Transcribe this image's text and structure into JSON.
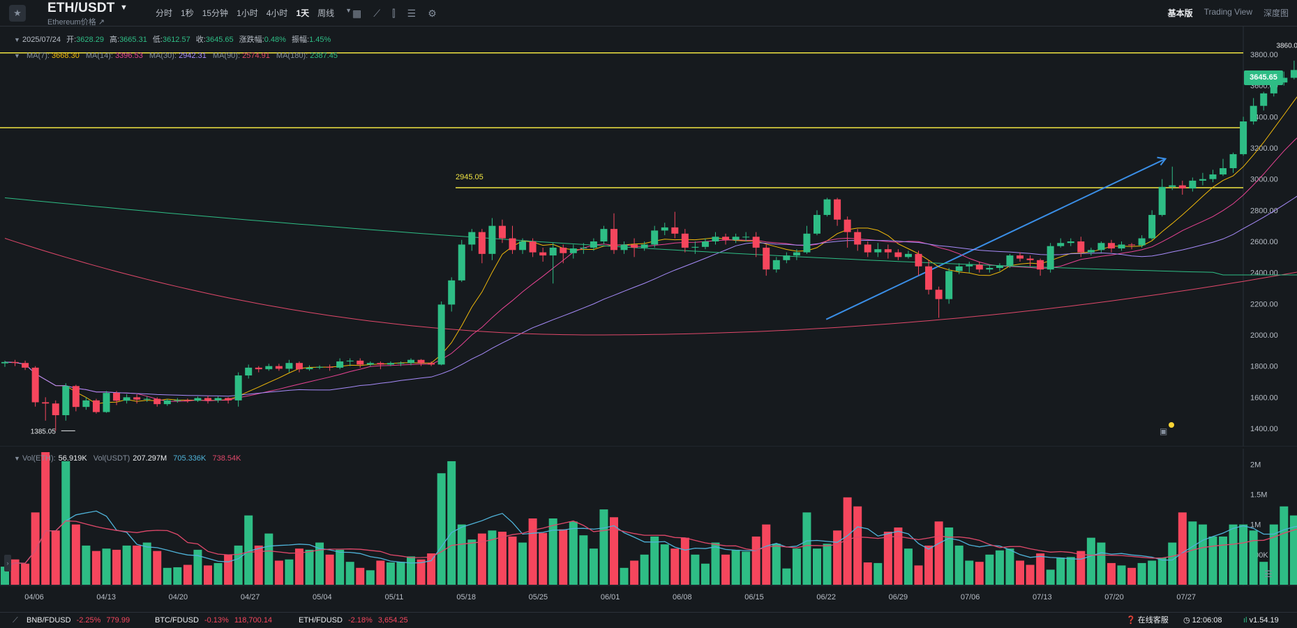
{
  "header": {
    "symbol": "ETH/USDT",
    "subtitle": "Ethereum价格 ↗",
    "intervals": [
      "分时",
      "1秒",
      "15分钟",
      "1小时",
      "4小时",
      "1天",
      "周线"
    ],
    "active_interval": "1天",
    "views": [
      "基本版",
      "Trading View",
      "深度图"
    ],
    "active_view": "基本版"
  },
  "ohlc": {
    "date": "2025/07/24",
    "open_label": "开:",
    "open": "3628.29",
    "high_label": "高:",
    "high": "3665.31",
    "low_label": "低:",
    "low": "3612.57",
    "close_label": "收:",
    "close": "3645.65",
    "change_label": "涨跌幅:",
    "change": "0.48%",
    "amplitude_label": "振幅:",
    "amplitude": "1.45%"
  },
  "ma": [
    {
      "label": "MA(7):",
      "value": "3668.30",
      "color": "#f0b90b"
    },
    {
      "label": "MA(14):",
      "value": "3396.53",
      "color": "#e84393"
    },
    {
      "label": "MA(30):",
      "value": "2942.31",
      "color": "#a78bfa"
    },
    {
      "label": "MA(90):",
      "value": "2574.91",
      "color": "#e0486a"
    },
    {
      "label": "MA(180):",
      "value": "2387.45",
      "color": "#2ebd85"
    }
  ],
  "volume": {
    "label_eth": "Vol(ETH):",
    "eth": "56.919K",
    "label_usdt": "Vol(USDT)",
    "usdt": "207.297M",
    "ma1": "705.336K",
    "ma2": "738.54K"
  },
  "price_badge": "3645.65",
  "annotations": {
    "high_marker": "3860.00",
    "low_marker": "1385.05",
    "line_label": "2945.05"
  },
  "colors": {
    "up": "#2ebd85",
    "down": "#f6465d",
    "bg": "#161a1e",
    "hline": "#f0e442",
    "trend": "#3a8ee6"
  },
  "bottom": {
    "tickers": [
      {
        "name": "BNB/FDUSD",
        "change": "-2.25%",
        "price": "779.99"
      },
      {
        "name": "BTC/FDUSD",
        "change": "-0.13%",
        "price": "118,700.14"
      },
      {
        "name": "ETH/FDUSD",
        "change": "-2.18%",
        "price": "3,654.25"
      }
    ],
    "support": "在线客服",
    "time": "12:06:08",
    "version": "v1.54.19"
  },
  "chart_data": {
    "type": "candlestick",
    "y_ticks": [
      1400,
      1600,
      1800,
      2000,
      2200,
      2400,
      2600,
      2800,
      3000,
      3200,
      3400,
      3600,
      3800
    ],
    "x_ticks": [
      "04/06",
      "04/13",
      "04/20",
      "04/27",
      "05/04",
      "05/11",
      "05/18",
      "05/25",
      "06/01",
      "06/08",
      "06/15",
      "06/22",
      "06/29",
      "07/06",
      "07/13",
      "07/20",
      "07/27"
    ],
    "vol_ticks": [
      "500K",
      "1M",
      "1.5M",
      "2M"
    ],
    "vol_tick_values": [
      500000,
      1000000,
      1500000,
      2000000
    ],
    "horizontal_lines": [
      3810,
      3330,
      2945.05
    ],
    "trendline": {
      "from": [
        "06/22",
        2100
      ],
      "to": [
        "07/25",
        3130
      ]
    },
    "candles": [
      [
        1818,
        1826,
        1795,
        1835
      ],
      [
        1826,
        1820,
        1800,
        1840
      ],
      [
        1820,
        1790,
        1775,
        1835
      ],
      [
        1790,
        1568,
        1540,
        1800
      ],
      [
        1568,
        1560,
        1450,
        1600
      ],
      [
        1560,
        1485,
        1385,
        1580
      ],
      [
        1485,
        1672,
        1450,
        1690
      ],
      [
        1672,
        1538,
        1510,
        1680
      ],
      [
        1538,
        1580,
        1520,
        1600
      ],
      [
        1580,
        1505,
        1495,
        1590
      ],
      [
        1505,
        1628,
        1500,
        1640
      ],
      [
        1628,
        1578,
        1550,
        1640
      ],
      [
        1578,
        1600,
        1560,
        1620
      ],
      [
        1600,
        1585,
        1560,
        1620
      ],
      [
        1585,
        1590,
        1570,
        1605
      ],
      [
        1590,
        1556,
        1540,
        1600
      ],
      [
        1556,
        1580,
        1545,
        1590
      ],
      [
        1580,
        1582,
        1565,
        1595
      ],
      [
        1582,
        1578,
        1565,
        1592
      ],
      [
        1578,
        1595,
        1570,
        1605
      ],
      [
        1595,
        1580,
        1560,
        1610
      ],
      [
        1580,
        1595,
        1565,
        1605
      ],
      [
        1595,
        1580,
        1560,
        1600
      ],
      [
        1580,
        1740,
        1540,
        1760
      ],
      [
        1740,
        1790,
        1720,
        1810
      ],
      [
        1790,
        1780,
        1760,
        1800
      ],
      [
        1780,
        1800,
        1770,
        1815
      ],
      [
        1800,
        1783,
        1770,
        1815
      ],
      [
        1783,
        1820,
        1760,
        1840
      ],
      [
        1820,
        1780,
        1760,
        1830
      ],
      [
        1780,
        1790,
        1770,
        1805
      ],
      [
        1790,
        1795,
        1780,
        1805
      ],
      [
        1795,
        1790,
        1770,
        1810
      ],
      [
        1790,
        1830,
        1780,
        1850
      ],
      [
        1830,
        1835,
        1800,
        1850
      ],
      [
        1835,
        1810,
        1790,
        1850
      ],
      [
        1810,
        1820,
        1800,
        1830
      ],
      [
        1820,
        1810,
        1780,
        1830
      ],
      [
        1810,
        1820,
        1800,
        1830
      ],
      [
        1820,
        1820,
        1800,
        1830
      ],
      [
        1820,
        1840,
        1805,
        1850
      ],
      [
        1840,
        1820,
        1800,
        1845
      ],
      [
        1820,
        1810,
        1800,
        1830
      ],
      [
        1810,
        2195,
        1805,
        2215
      ],
      [
        2195,
        2350,
        2150,
        2370
      ],
      [
        2350,
        2580,
        2340,
        2610
      ],
      [
        2580,
        2660,
        2540,
        2680
      ],
      [
        2660,
        2520,
        2460,
        2680
      ],
      [
        2520,
        2700,
        2480,
        2750
      ],
      [
        2700,
        2620,
        2590,
        2740
      ],
      [
        2620,
        2545,
        2520,
        2700
      ],
      [
        2545,
        2600,
        2520,
        2620
      ],
      [
        2600,
        2530,
        2500,
        2620
      ],
      [
        2530,
        2510,
        2470,
        2560
      ],
      [
        2510,
        2560,
        2330,
        2590
      ],
      [
        2560,
        2525,
        2460,
        2580
      ],
      [
        2525,
        2555,
        2490,
        2580
      ],
      [
        2555,
        2560,
        2520,
        2590
      ],
      [
        2560,
        2600,
        2540,
        2620
      ],
      [
        2600,
        2680,
        2580,
        2700
      ],
      [
        2680,
        2545,
        2520,
        2780
      ],
      [
        2545,
        2580,
        2520,
        2600
      ],
      [
        2580,
        2560,
        2500,
        2620
      ],
      [
        2560,
        2580,
        2540,
        2600
      ],
      [
        2580,
        2670,
        2560,
        2700
      ],
      [
        2670,
        2690,
        2640,
        2720
      ],
      [
        2690,
        2650,
        2620,
        2790
      ],
      [
        2650,
        2560,
        2530,
        2680
      ],
      [
        2560,
        2565,
        2520,
        2600
      ],
      [
        2565,
        2600,
        2550,
        2620
      ],
      [
        2600,
        2630,
        2580,
        2660
      ],
      [
        2630,
        2610,
        2580,
        2650
      ],
      [
        2610,
        2630,
        2590,
        2650
      ],
      [
        2630,
        2630,
        2600,
        2660
      ],
      [
        2630,
        2560,
        2500,
        2660
      ],
      [
        2560,
        2420,
        2380,
        2580
      ],
      [
        2420,
        2480,
        2400,
        2500
      ],
      [
        2480,
        2510,
        2460,
        2530
      ],
      [
        2510,
        2530,
        2480,
        2550
      ],
      [
        2530,
        2650,
        2520,
        2700
      ],
      [
        2650,
        2770,
        2640,
        2800
      ],
      [
        2770,
        2870,
        2760,
        2880
      ],
      [
        2870,
        2740,
        2700,
        2880
      ],
      [
        2740,
        2660,
        2560,
        2760
      ],
      [
        2660,
        2580,
        2540,
        2680
      ],
      [
        2580,
        2530,
        2500,
        2600
      ],
      [
        2530,
        2550,
        2500,
        2590
      ],
      [
        2550,
        2530,
        2490,
        2580
      ],
      [
        2530,
        2500,
        2480,
        2550
      ],
      [
        2500,
        2520,
        2490,
        2540
      ],
      [
        2520,
        2440,
        2380,
        2540
      ],
      [
        2440,
        2290,
        2260,
        2480
      ],
      [
        2290,
        2230,
        2110,
        2310
      ],
      [
        2230,
        2410,
        2200,
        2430
      ],
      [
        2410,
        2440,
        2390,
        2460
      ],
      [
        2440,
        2450,
        2400,
        2470
      ],
      [
        2450,
        2420,
        2400,
        2470
      ],
      [
        2420,
        2430,
        2400,
        2450
      ],
      [
        2430,
        2445,
        2410,
        2460
      ],
      [
        2445,
        2510,
        2430,
        2520
      ],
      [
        2510,
        2490,
        2470,
        2530
      ],
      [
        2490,
        2480,
        2440,
        2510
      ],
      [
        2480,
        2420,
        2380,
        2490
      ],
      [
        2420,
        2570,
        2400,
        2590
      ],
      [
        2570,
        2590,
        2560,
        2620
      ],
      [
        2590,
        2600,
        2570,
        2620
      ],
      [
        2600,
        2530,
        2500,
        2630
      ],
      [
        2530,
        2545,
        2510,
        2560
      ],
      [
        2545,
        2590,
        2530,
        2600
      ],
      [
        2590,
        2555,
        2530,
        2610
      ],
      [
        2555,
        2580,
        2540,
        2600
      ],
      [
        2580,
        2575,
        2550,
        2590
      ],
      [
        2575,
        2620,
        2560,
        2640
      ],
      [
        2620,
        2770,
        2610,
        2800
      ],
      [
        2770,
        2950,
        2760,
        3000
      ],
      [
        2950,
        2960,
        2930,
        3080
      ],
      [
        2960,
        2940,
        2900,
        2990
      ],
      [
        2940,
        2990,
        2920,
        3010
      ],
      [
        2990,
        3000,
        2960,
        3040
      ],
      [
        3000,
        3030,
        2980,
        3060
      ],
      [
        3030,
        3070,
        3020,
        3130
      ],
      [
        3070,
        3160,
        3040,
        3170
      ],
      [
        3160,
        3370,
        3150,
        3400
      ],
      [
        3370,
        3470,
        3350,
        3520
      ],
      [
        3470,
        3550,
        3440,
        3560
      ],
      [
        3550,
        3620,
        3530,
        3640
      ],
      [
        3620,
        3650,
        3600,
        3690
      ],
      [
        3650,
        3700,
        3640,
        3760
      ],
      [
        3700,
        3760,
        3650,
        3860
      ],
      [
        3760,
        3750,
        3720,
        3820
      ],
      [
        3750,
        3740,
        3660,
        3780
      ],
      [
        3740,
        3620,
        3530,
        3760
      ],
      [
        3628,
        3645,
        3612,
        3665
      ]
    ],
    "volumes": [
      300000,
      420000,
      350000,
      1200000,
      2200000,
      900000,
      2050000,
      1000000,
      650000,
      560000,
      600000,
      580000,
      650000,
      650000,
      700000,
      560000,
      280000,
      290000,
      330000,
      580000,
      320000,
      360000,
      500000,
      650000,
      1150000,
      650000,
      850000,
      400000,
      420000,
      600000,
      580000,
      700000,
      500000,
      580000,
      380000,
      280000,
      240000,
      400000,
      370000,
      380000,
      470000,
      420000,
      520000,
      1850000,
      2050000,
      1000000,
      750000,
      850000,
      900000,
      880000,
      800000,
      700000,
      1100000,
      860000,
      1100000,
      920000,
      1050000,
      820000,
      600000,
      1250000,
      1120000,
      280000,
      400000,
      500000,
      800000,
      670000,
      600000,
      780000,
      500000,
      350000,
      700000,
      500000,
      580000,
      550000,
      800000,
      1000000,
      680000,
      270000,
      600000,
      1200000,
      600000,
      680000,
      900000,
      1450000,
      1300000,
      370000,
      360000,
      880000,
      950000,
      600000,
      320000,
      650000,
      1050000,
      950000,
      650000,
      400000,
      380000,
      500000,
      570000,
      600000,
      400000,
      330000,
      520000,
      250000,
      450000,
      460000,
      560000,
      780000,
      700000,
      360000,
      320000,
      280000,
      360000,
      400000,
      450000,
      700000,
      1200000,
      1050000,
      1000000,
      800000,
      800000,
      1000000,
      1000000,
      900000,
      380000,
      1000000,
      1300000,
      1150000,
      1150000,
      870000,
      480000,
      900000,
      900000,
      850000,
      60000
    ],
    "ma7_volumes_note": "moving averages of volume drawn as lines"
  }
}
